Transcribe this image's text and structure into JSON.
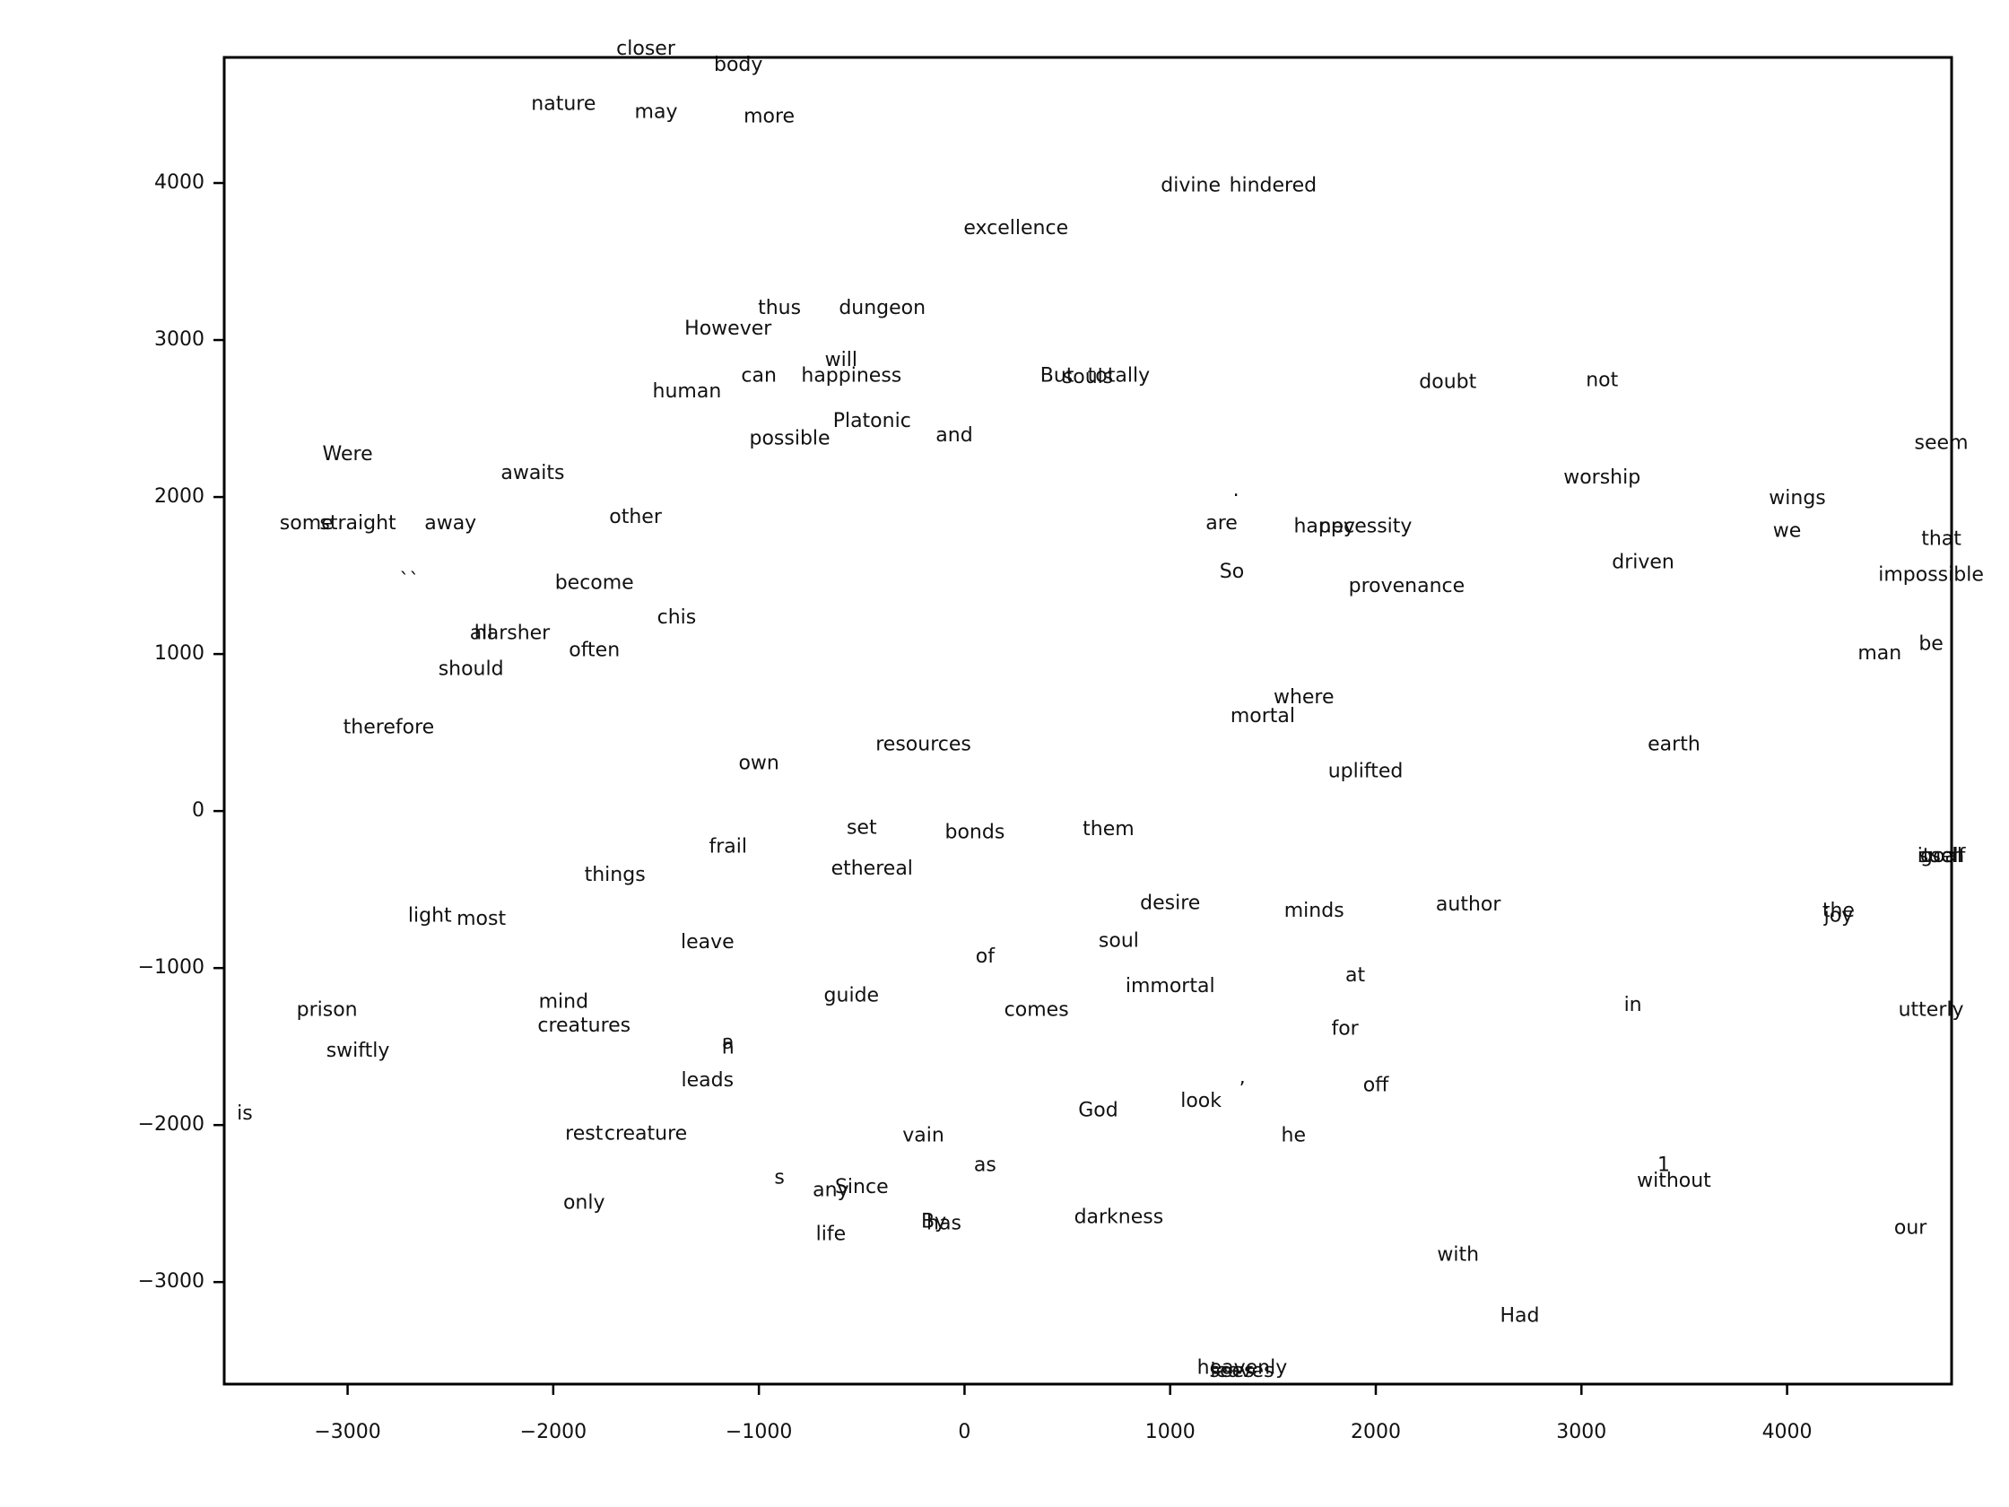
{
  "chart_data": {
    "type": "scatter",
    "title": "",
    "xlabel": "",
    "ylabel": "",
    "xlim": [
      -3600,
      4800
    ],
    "ylim": [
      -3650,
      4800
    ],
    "grid": false,
    "x_ticks": [
      -3000,
      -2000,
      -1000,
      0,
      1000,
      2000,
      3000,
      4000
    ],
    "y_ticks": [
      -3000,
      -2000,
      -1000,
      0,
      1000,
      2000,
      3000,
      4000
    ],
    "x_tick_labels": [
      "−3000",
      "−2000",
      "−1000",
      "0",
      "1000",
      "2000",
      "3000",
      "4000"
    ],
    "y_tick_labels": [
      "−3000",
      "−2000",
      "−1000",
      "0",
      "1000",
      "2000",
      "3000",
      "4000"
    ],
    "points": [
      {
        "label": "closer",
        "x": -1550,
        "y": 4850
      },
      {
        "label": "body",
        "x": -1100,
        "y": 4750
      },
      {
        "label": "nature",
        "x": -1950,
        "y": 4500
      },
      {
        "label": "may",
        "x": -1500,
        "y": 4450
      },
      {
        "label": "more",
        "x": -950,
        "y": 4420
      },
      {
        "label": "divine",
        "x": 1100,
        "y": 3980
      },
      {
        "label": "hindered",
        "x": 1500,
        "y": 3980
      },
      {
        "label": "excellence",
        "x": 250,
        "y": 3710
      },
      {
        "label": "thus",
        "x": -900,
        "y": 3200
      },
      {
        "label": "dungeon",
        "x": -400,
        "y": 3200
      },
      {
        "label": "However",
        "x": -1150,
        "y": 3070
      },
      {
        "label": "will",
        "x": -600,
        "y": 2870
      },
      {
        "label": "can",
        "x": -1000,
        "y": 2770
      },
      {
        "label": "happiness",
        "x": -550,
        "y": 2770
      },
      {
        "label": "human",
        "x": -1350,
        "y": 2670
      },
      {
        "label": "Platonic",
        "x": -450,
        "y": 2480
      },
      {
        "label": "possible",
        "x": -850,
        "y": 2370
      },
      {
        "label": "and",
        "x": -50,
        "y": 2390
      },
      {
        "label": "But",
        "x": 450,
        "y": 2770
      },
      {
        "label": "totally",
        "x": 750,
        "y": 2770
      },
      {
        "label": "souls",
        "x": 600,
        "y": 2760
      },
      {
        "label": "doubt",
        "x": 2350,
        "y": 2730
      },
      {
        "label": "not",
        "x": 3100,
        "y": 2740
      },
      {
        "label": "Were",
        "x": -3000,
        "y": 2270
      },
      {
        "label": "awaits",
        "x": -2100,
        "y": 2150
      },
      {
        "label": "other",
        "x": -1600,
        "y": 1870
      },
      {
        "label": "some",
        "x": -3200,
        "y": 1830
      },
      {
        "label": "straight",
        "x": -2950,
        "y": 1830
      },
      {
        "label": "away",
        "x": -2500,
        "y": 1830
      },
      {
        "label": "worship",
        "x": 3100,
        "y": 2120
      },
      {
        "label": "wings",
        "x": 4050,
        "y": 1990
      },
      {
        "label": "seem",
        "x": 4750,
        "y": 2340
      },
      {
        "label": ".",
        "x": 1320,
        "y": 2040
      },
      {
        "label": "are",
        "x": 1250,
        "y": 1830
      },
      {
        "label": "happy",
        "x": 1750,
        "y": 1810
      },
      {
        "label": "necessity",
        "x": 1950,
        "y": 1810
      },
      {
        "label": "we",
        "x": 4000,
        "y": 1780
      },
      {
        "label": "that",
        "x": 4750,
        "y": 1730
      },
      {
        "label": "driven",
        "x": 3300,
        "y": 1580
      },
      {
        "label": "impossible",
        "x": 4700,
        "y": 1500
      },
      {
        "label": "So",
        "x": 1300,
        "y": 1520
      },
      {
        "label": "provenance",
        "x": 2150,
        "y": 1430
      },
      {
        "label": "``",
        "x": -2700,
        "y": 1460
      },
      {
        "label": "become",
        "x": -1800,
        "y": 1450
      },
      {
        "label": "chis",
        "x": -1400,
        "y": 1230
      },
      {
        "label": "harsher",
        "x": -2200,
        "y": 1130
      },
      {
        "label": "all",
        "x": -2350,
        "y": 1130
      },
      {
        "label": "often",
        "x": -1800,
        "y": 1020
      },
      {
        "label": "should",
        "x": -2400,
        "y": 900
      },
      {
        "label": "man",
        "x": 4450,
        "y": 1000
      },
      {
        "label": "be",
        "x": 4700,
        "y": 1060
      },
      {
        "label": "therefore",
        "x": -2800,
        "y": 530
      },
      {
        "label": "where",
        "x": 1650,
        "y": 720
      },
      {
        "label": "mortal",
        "x": 1450,
        "y": 600
      },
      {
        "label": "earth",
        "x": 3450,
        "y": 420
      },
      {
        "label": "own",
        "x": -1000,
        "y": 300
      },
      {
        "label": "resources",
        "x": -200,
        "y": 420
      },
      {
        "label": "uplifted",
        "x": 1950,
        "y": 250
      },
      {
        "label": "set",
        "x": -500,
        "y": -110
      },
      {
        "label": "bonds",
        "x": 50,
        "y": -140
      },
      {
        "label": "them",
        "x": 700,
        "y": -120
      },
      {
        "label": "frail",
        "x": -1150,
        "y": -230
      },
      {
        "label": "ethereal",
        "x": -450,
        "y": -370
      },
      {
        "label": "things",
        "x": -1700,
        "y": -410
      },
      {
        "label": "light",
        "x": -2600,
        "y": -670
      },
      {
        "label": "most",
        "x": -2350,
        "y": -690
      },
      {
        "label": "desire",
        "x": 1000,
        "y": -590
      },
      {
        "label": "minds",
        "x": 1700,
        "y": -640
      },
      {
        "label": "author",
        "x": 2450,
        "y": -600
      },
      {
        "label": "the",
        "x": 4250,
        "y": -640
      },
      {
        "label": "joy",
        "x": 4250,
        "y": -670
      },
      {
        "label": "leave",
        "x": -1250,
        "y": -840
      },
      {
        "label": "soul",
        "x": 750,
        "y": -830
      },
      {
        "label": "of",
        "x": 100,
        "y": -930
      },
      {
        "label": "at",
        "x": 1900,
        "y": -1050
      },
      {
        "label": "immortal",
        "x": 1000,
        "y": -1120
      },
      {
        "label": "guide",
        "x": -550,
        "y": -1180
      },
      {
        "label": "comes",
        "x": 350,
        "y": -1270
      },
      {
        "label": "in",
        "x": 3250,
        "y": -1240
      },
      {
        "label": "utterly",
        "x": 4700,
        "y": -1270
      },
      {
        "label": "prison",
        "x": -3100,
        "y": -1270
      },
      {
        "label": "mind",
        "x": -1950,
        "y": -1220
      },
      {
        "label": "creatures",
        "x": -1850,
        "y": -1370
      },
      {
        "label": "for",
        "x": 1850,
        "y": -1390
      },
      {
        "label": "swiftly",
        "x": -2950,
        "y": -1530
      },
      {
        "label": "a",
        "x": -1150,
        "y": -1480
      },
      {
        "label": "h",
        "x": -1150,
        "y": -1510
      },
      {
        "label": "leads",
        "x": -1250,
        "y": -1720
      },
      {
        "label": "off",
        "x": 2000,
        "y": -1750
      },
      {
        "label": "God",
        "x": 650,
        "y": -1910
      },
      {
        "label": "look",
        "x": 1150,
        "y": -1850
      },
      {
        "label": "’",
        "x": 1350,
        "y": -1780
      },
      {
        "label": "is",
        "x": -3500,
        "y": -1930
      },
      {
        "label": "he",
        "x": 1600,
        "y": -2070
      },
      {
        "label": "rest",
        "x": -1850,
        "y": -2060
      },
      {
        "label": "creature",
        "x": -1550,
        "y": -2060
      },
      {
        "label": "vain",
        "x": -200,
        "y": -2070
      },
      {
        "label": "as",
        "x": 100,
        "y": -2260
      },
      {
        "label": "1",
        "x": 3400,
        "y": -2260
      },
      {
        "label": "without",
        "x": 3450,
        "y": -2360
      },
      {
        "label": "s",
        "x": -900,
        "y": -2340
      },
      {
        "label": "any",
        "x": -650,
        "y": -2420
      },
      {
        "label": "Since",
        "x": -500,
        "y": -2400
      },
      {
        "label": "only",
        "x": -1850,
        "y": -2500
      },
      {
        "label": "By",
        "x": -150,
        "y": -2620
      },
      {
        "label": "has",
        "x": -100,
        "y": -2630
      },
      {
        "label": "darkness",
        "x": 750,
        "y": -2590
      },
      {
        "label": "life",
        "x": -650,
        "y": -2700
      },
      {
        "label": "our",
        "x": 4600,
        "y": -2660
      },
      {
        "label": "with",
        "x": 2400,
        "y": -2830
      },
      {
        "label": "Had",
        "x": 2700,
        "y": -3220
      },
      {
        "label": "heavenly",
        "x": 1350,
        "y": -3550
      },
      {
        "label": "sees",
        "x": 1300,
        "y": -3570
      },
      {
        "label": "leaves",
        "x": 1350,
        "y": -3570
      },
      {
        "label": "itself",
        "x": 4750,
        "y": -290
      },
      {
        "label": "such",
        "x": 4750,
        "y": -290
      },
      {
        "label": "goal",
        "x": 4750,
        "y": -290
      }
    ]
  }
}
